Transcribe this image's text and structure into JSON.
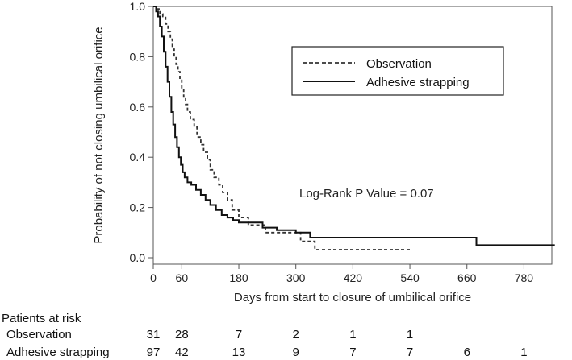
{
  "chart_data": {
    "type": "line",
    "title": "",
    "xlabel": "Days from start to closure of umbilical orifice",
    "ylabel": "Probability of not closing umbilical orifice",
    "xlim": [
      0,
      850
    ],
    "ylim": [
      0,
      1.0
    ],
    "x_ticks": [
      0,
      60,
      180,
      300,
      420,
      540,
      660,
      780
    ],
    "x_tick_labels": [
      "0",
      "60",
      "180",
      "300",
      "420",
      "540",
      "660",
      "780"
    ],
    "y_ticks": [
      0.0,
      0.2,
      0.4,
      0.6,
      0.8,
      1.0
    ],
    "y_tick_labels": [
      "0.0",
      "0.2",
      "0.4",
      "0.6",
      "0.8",
      "1.0"
    ],
    "grid": false,
    "legend_position": "top-right",
    "annotation": "Log-Rank P Value = 0.07",
    "series": [
      {
        "name": "Observation",
        "style": "dashed",
        "color": "#333333",
        "x": [
          0,
          8,
          14,
          20,
          26,
          31,
          36,
          40,
          44,
          48,
          52,
          56,
          60,
          64,
          68,
          72,
          78,
          86,
          92,
          100,
          106,
          114,
          120,
          128,
          138,
          146,
          156,
          166,
          180,
          200,
          218,
          236,
          256,
          300,
          310,
          340,
          545
        ],
        "y": [
          1.0,
          0.99,
          0.97,
          0.96,
          0.93,
          0.9,
          0.87,
          0.83,
          0.8,
          0.77,
          0.74,
          0.71,
          0.67,
          0.64,
          0.61,
          0.58,
          0.55,
          0.52,
          0.48,
          0.45,
          0.42,
          0.39,
          0.35,
          0.32,
          0.29,
          0.26,
          0.23,
          0.19,
          0.16,
          0.13,
          0.13,
          0.1,
          0.1,
          0.1,
          0.065,
          0.032,
          0.032
        ]
      },
      {
        "name": "Adhesive strapping",
        "style": "solid",
        "color": "#111111",
        "x": [
          0,
          6,
          10,
          14,
          18,
          22,
          26,
          30,
          34,
          38,
          42,
          46,
          50,
          54,
          58,
          62,
          66,
          72,
          80,
          90,
          100,
          110,
          120,
          132,
          144,
          156,
          168,
          180,
          200,
          230,
          260,
          300,
          330,
          420,
          660,
          680,
          845
        ],
        "y": [
          1.0,
          0.98,
          0.96,
          0.92,
          0.88,
          0.82,
          0.76,
          0.7,
          0.64,
          0.58,
          0.53,
          0.48,
          0.44,
          0.4,
          0.37,
          0.34,
          0.32,
          0.3,
          0.29,
          0.27,
          0.25,
          0.23,
          0.21,
          0.19,
          0.17,
          0.16,
          0.15,
          0.14,
          0.14,
          0.12,
          0.11,
          0.1,
          0.08,
          0.08,
          0.08,
          0.05,
          0.05
        ]
      }
    ],
    "risk_table": {
      "title": "Patients at risk",
      "time_points": [
        0,
        60,
        180,
        300,
        420,
        540,
        660,
        780
      ],
      "rows": [
        {
          "label": "Observation",
          "values": [
            "31",
            "28",
            "7",
            "2",
            "1",
            "1"
          ]
        },
        {
          "label": "Adhesive strapping",
          "values": [
            "97",
            "42",
            "13",
            "9",
            "7",
            "7",
            "6",
            "1"
          ]
        }
      ]
    }
  }
}
